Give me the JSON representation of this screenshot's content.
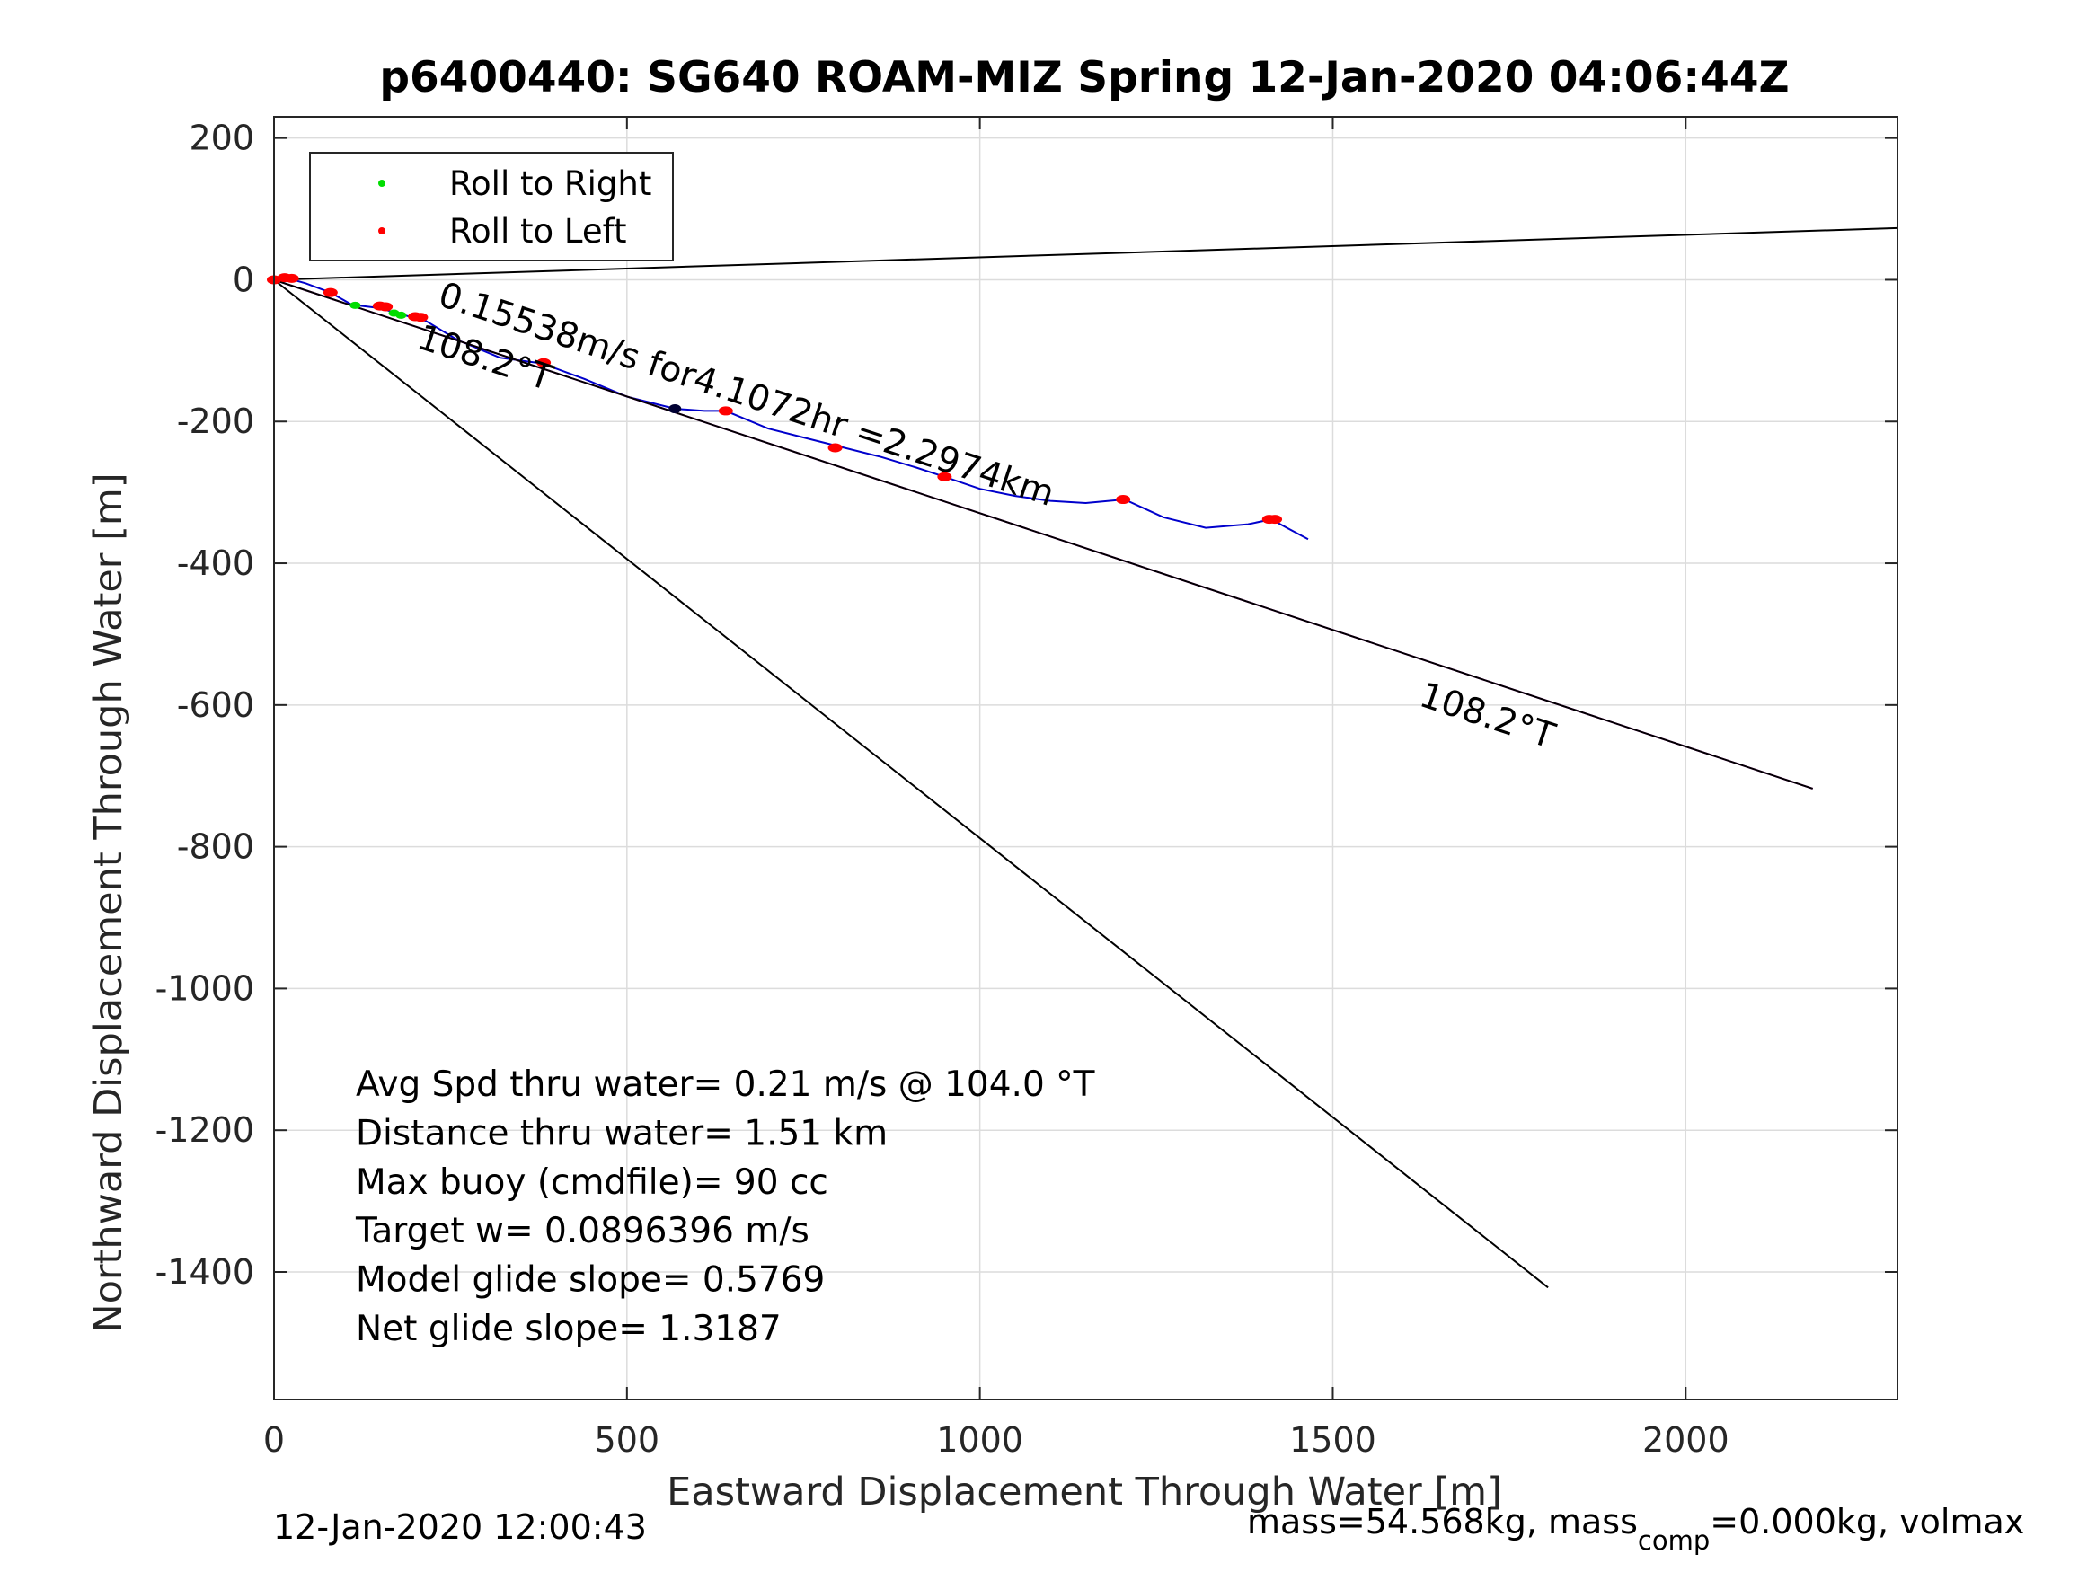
{
  "chart_data": {
    "type": "line",
    "title": "p6400440: SG640 ROAM-MIZ Spring 12-Jan-2020 04:06:44Z",
    "xlabel": "Eastward Displacement Through Water [m]",
    "ylabel": "Northward Displacement Through Water [m]",
    "xlim": [
      0,
      2300
    ],
    "ylim": [
      -1580,
      230
    ],
    "xticks": [
      0,
      500,
      1000,
      1500,
      2000
    ],
    "yticks": [
      200,
      0,
      -200,
      -400,
      -600,
      -800,
      -1000,
      -1200,
      -1400
    ],
    "grid": true,
    "legend": {
      "placement": "top-left",
      "entries": [
        {
          "label": "Roll to Right",
          "color": "#00dd00"
        },
        {
          "label": "Roll to Left",
          "color": "#ff0000"
        }
      ]
    },
    "series": [
      {
        "color": "#0000cc",
        "x": [
          0,
          20,
          45,
          80,
          110,
          150,
          185,
          215,
          260,
          320,
          380,
          440,
          500,
          568,
          610,
          640,
          700,
          760,
          800,
          860,
          910,
          950,
          1000,
          1050,
          1100,
          1150,
          1205,
          1260,
          1320,
          1380,
          1413,
          1435,
          1465
        ],
        "y": [
          0,
          2,
          -5,
          -18,
          -35,
          -40,
          -50,
          -58,
          -85,
          -110,
          -118,
          -140,
          -165,
          -182,
          -185,
          -185,
          -210,
          -225,
          -235,
          -250,
          -265,
          -278,
          -295,
          -305,
          -312,
          -315,
          -310,
          -335,
          -350,
          -345,
          -338,
          -350,
          -366
        ]
      },
      {
        "color": "#cc00cc",
        "x": [
          0,
          2180
        ],
        "y": [
          0,
          -718
        ]
      },
      {
        "color": "#000000",
        "x": [
          0,
          2180
        ],
        "y": [
          0,
          -718
        ]
      },
      {
        "color": "#000000",
        "x": [
          0,
          1805
        ],
        "y": [
          0,
          -1422
        ]
      },
      {
        "color": "#000000",
        "x": [
          0,
          2300
        ],
        "y": [
          0,
          73
        ]
      }
    ],
    "markers": {
      "roll_right": {
        "color": "#00dd00",
        "x": [
          115,
          170,
          180
        ],
        "y": [
          -36,
          -47,
          -50
        ]
      },
      "roll_left": {
        "color": "#ff0000",
        "x": [
          0,
          15,
          25,
          80,
          150,
          158,
          200,
          208,
          382,
          640,
          795,
          950,
          1203,
          1410,
          1418
        ],
        "y": [
          0,
          3,
          2,
          -18,
          -37,
          -38,
          -52,
          -53,
          -117,
          -185,
          -237,
          -278,
          -310,
          -338,
          -338
        ]
      },
      "other": {
        "color": "#000033",
        "x": [
          568
        ],
        "y": [
          -182
        ]
      }
    },
    "annotations": [
      {
        "text": "0.15538m/s for4.1072hr =2.2974km",
        "x": 230,
        "y": -35,
        "angle": 18.2
      },
      {
        "text": "108.2°T",
        "x": 200,
        "y": -95,
        "angle": 18.2
      },
      {
        "text": "108.2°T",
        "x": 1620,
        "y": -600,
        "angle": 18.2
      }
    ],
    "stats": [
      "Avg Spd thru water=  0.21 m/s @ 104.0 °T",
      "Distance thru water=  1.51 km",
      "Max buoy (cmdfile)= 90 cc",
      "Target w= 0.0896396 m/s",
      "Model glide slope= 0.5769",
      "Net glide slope= 1.3187"
    ],
    "footer_left": "12-Jan-2020 12:00:43",
    "footer_right": {
      "pre": "mass=54.568kg, mass",
      "sub": "comp",
      "post": "=0.000kg, volmax"
    }
  }
}
